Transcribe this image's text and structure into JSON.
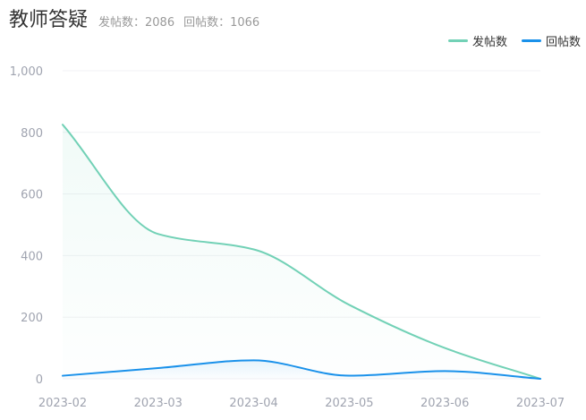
{
  "header": {
    "title": "教师答疑",
    "stat_post": "发帖数：2086",
    "stat_reply": "回帖数：1066"
  },
  "chart_data": {
    "type": "area",
    "categories": [
      "2023-02",
      "2023-03",
      "2023-04",
      "2023-05",
      "2023-06",
      "2023-07"
    ],
    "yticks": [
      "0",
      "200",
      "400",
      "600",
      "800",
      "1,000"
    ],
    "ylim": [
      0,
      1000
    ],
    "grid": true,
    "legend_position": "top-right",
    "series": [
      {
        "name": "发帖数",
        "color": "#72d1b6",
        "values": [
          825,
          470,
          420,
          240,
          100,
          0
        ]
      },
      {
        "name": "回帖数",
        "color": "#1a91ea",
        "values": [
          10,
          35,
          60,
          10,
          25,
          0
        ]
      }
    ]
  }
}
